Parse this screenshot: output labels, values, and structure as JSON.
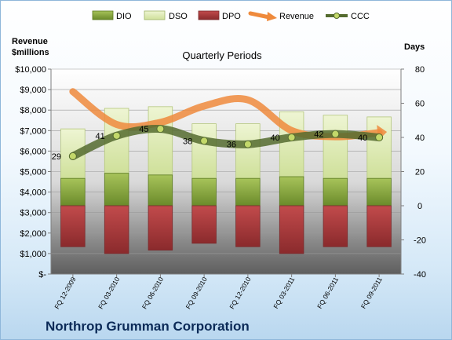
{
  "company": "Northrop Grumman Corporation",
  "chart_data": {
    "type": "bar",
    "title": "Quarterly Periods",
    "y_left_label": [
      "Revenue",
      "$millions"
    ],
    "y_right_label": "Days",
    "y_left_ticks": [
      "$-",
      "$1,000",
      "$2,000",
      "$3,000",
      "$4,000",
      "$5,000",
      "$6,000",
      "$7,000",
      "$8,000",
      "$9,000",
      "$10,000"
    ],
    "y_left_range": [
      0,
      10000
    ],
    "y_right_ticks": [
      "-40",
      "-20",
      "0",
      "20",
      "40",
      "60",
      "80"
    ],
    "y_right_range": [
      -40,
      80
    ],
    "grid": true,
    "legend_position": "top",
    "categories": [
      "FQ 12-2009",
      "FQ 03-2010",
      "FQ 06-2010",
      "FQ 09-2010",
      "FQ 12-2010",
      "FQ 03-2011",
      "FQ 06-2011",
      "FQ 09-2011"
    ],
    "series": [
      {
        "name": "DIO",
        "axis": "right",
        "kind": "bar",
        "color": "#7a9b34",
        "values": [
          16,
          19,
          18,
          16,
          16,
          17,
          16,
          16
        ]
      },
      {
        "name": "DSO",
        "axis": "right",
        "kind": "bar",
        "color": "#d7e5a6",
        "values": [
          29,
          38,
          40,
          32,
          32,
          38,
          37,
          36
        ]
      },
      {
        "name": "DPO",
        "axis": "right",
        "kind": "bar",
        "color": "#a83a3c",
        "values": [
          -24,
          -28,
          -26,
          -22,
          -24,
          -28,
          -24,
          -24
        ]
      },
      {
        "name": "Revenue",
        "axis": "left",
        "kind": "line",
        "color": "#ef8a3c",
        "values": [
          8900,
          7300,
          7400,
          8200,
          8500,
          7000,
          6700,
          6900
        ]
      },
      {
        "name": "CCC",
        "axis": "right",
        "kind": "line",
        "color": "#556b2f",
        "values": [
          29,
          41,
          45,
          38,
          36,
          40,
          42,
          40
        ]
      }
    ],
    "ccc_labels": [
      "29",
      "41",
      "45",
      "38",
      "36",
      "40",
      "42",
      "40"
    ]
  }
}
